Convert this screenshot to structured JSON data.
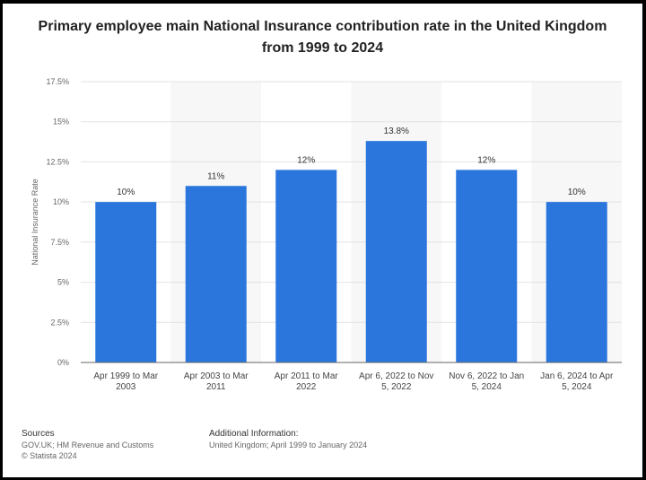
{
  "chart_data": {
    "type": "bar",
    "title": "Primary employee main National Insurance contribution rate in the United Kingdom\nfrom 1999 to 2024",
    "ylabel": "National Insurance Rate",
    "ylim": [
      0,
      17.5
    ],
    "yticks": [
      "0%",
      "2.5%",
      "5%",
      "7.5%",
      "10%",
      "12.5%",
      "15%",
      "17.5%"
    ],
    "ytick_values": [
      0,
      2.5,
      5,
      7.5,
      10,
      12.5,
      15,
      17.5
    ],
    "categories": [
      [
        "Apr 1999 to Mar",
        "2003"
      ],
      [
        "Apr 2003 to Mar",
        "2011"
      ],
      [
        "Apr 2011 to Mar",
        "2022"
      ],
      [
        "Apr 6, 2022 to Nov",
        "5, 2022"
      ],
      [
        "Nov 6, 2022 to Jan",
        "5, 2024"
      ],
      [
        "Jan 6, 2024 to Apr",
        "5, 2024"
      ]
    ],
    "values": [
      10,
      11,
      12,
      13.8,
      12,
      10
    ],
    "data_labels": [
      "10%",
      "11%",
      "12%",
      "13.8%",
      "12%",
      "10%"
    ],
    "bar_color": "#2a76dd",
    "grid": true
  },
  "footer": {
    "sources_title": "Sources",
    "sources_line1": "GOV.UK; HM Revenue and Customs",
    "sources_line2": "© Statista 2024",
    "info_title": "Additional Information:",
    "info_line1": "United Kingdom; April 1999 to January 2024"
  }
}
